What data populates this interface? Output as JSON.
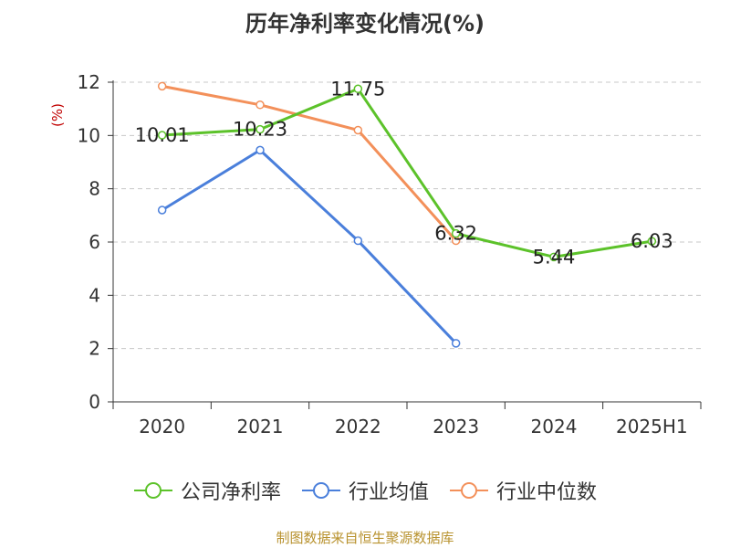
{
  "chart_data": {
    "type": "line",
    "title": "历年净利率变化情况(%)",
    "xlabel": "",
    "ylabel": "(%)",
    "categories": [
      "2020",
      "2021",
      "2022",
      "2023",
      "2024",
      "2025H1"
    ],
    "ylim": [
      0,
      12
    ],
    "yticks": [
      0,
      2,
      4,
      6,
      8,
      10,
      12
    ],
    "grid": true,
    "legend_position": "bottom",
    "series": [
      {
        "name": "公司净利率",
        "color": "#5cc22a",
        "values": [
          10.01,
          10.23,
          11.75,
          6.32,
          5.44,
          6.03
        ],
        "labels": [
          "10.01",
          "10.23",
          "11.75",
          "6.32",
          "5.44",
          "6.03"
        ]
      },
      {
        "name": "行业均值",
        "color": "#4a7fdb",
        "values": [
          7.2,
          9.45,
          6.05,
          2.2,
          null,
          null
        ],
        "labels": []
      },
      {
        "name": "行业中位数",
        "color": "#f3905a",
        "values": [
          11.85,
          11.15,
          10.2,
          6.05,
          null,
          null
        ],
        "labels": []
      }
    ]
  },
  "source": "制图数据来自恒生聚源数据库"
}
